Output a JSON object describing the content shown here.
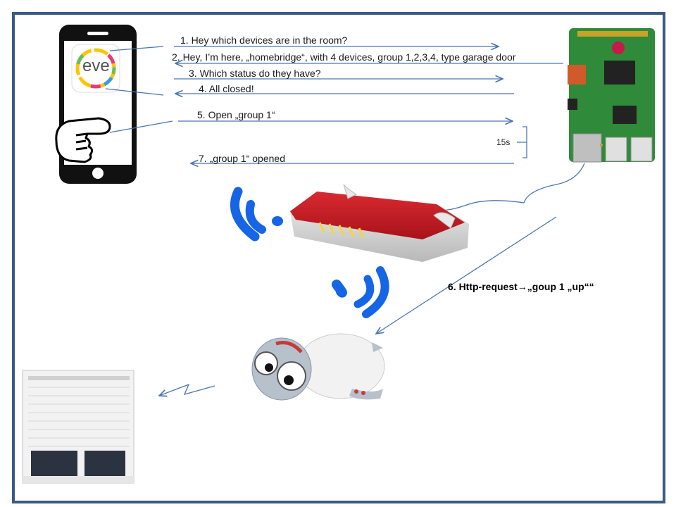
{
  "messages": {
    "m1": "1. Hey which devices are in the room?",
    "m2": "2. Hey, I’m here, „homebridge“, with 4 devices, group 1,2,3,4, type garage door",
    "m3": "3. Which status do they have?",
    "m4": "4. All closed!",
    "m5": "5. Open „group 1“",
    "m6": "6. Http-request→„goup 1 „up““",
    "m7": "7. „group 1“ opened"
  },
  "delay_label": "15s",
  "app_icon_text": "eve",
  "colors": {
    "frame": "#3b5a85",
    "arrow": "#4a76b0",
    "wifi": "#1565e6",
    "router_red": "#c41822",
    "pcb_green": "#2f8a3a"
  }
}
